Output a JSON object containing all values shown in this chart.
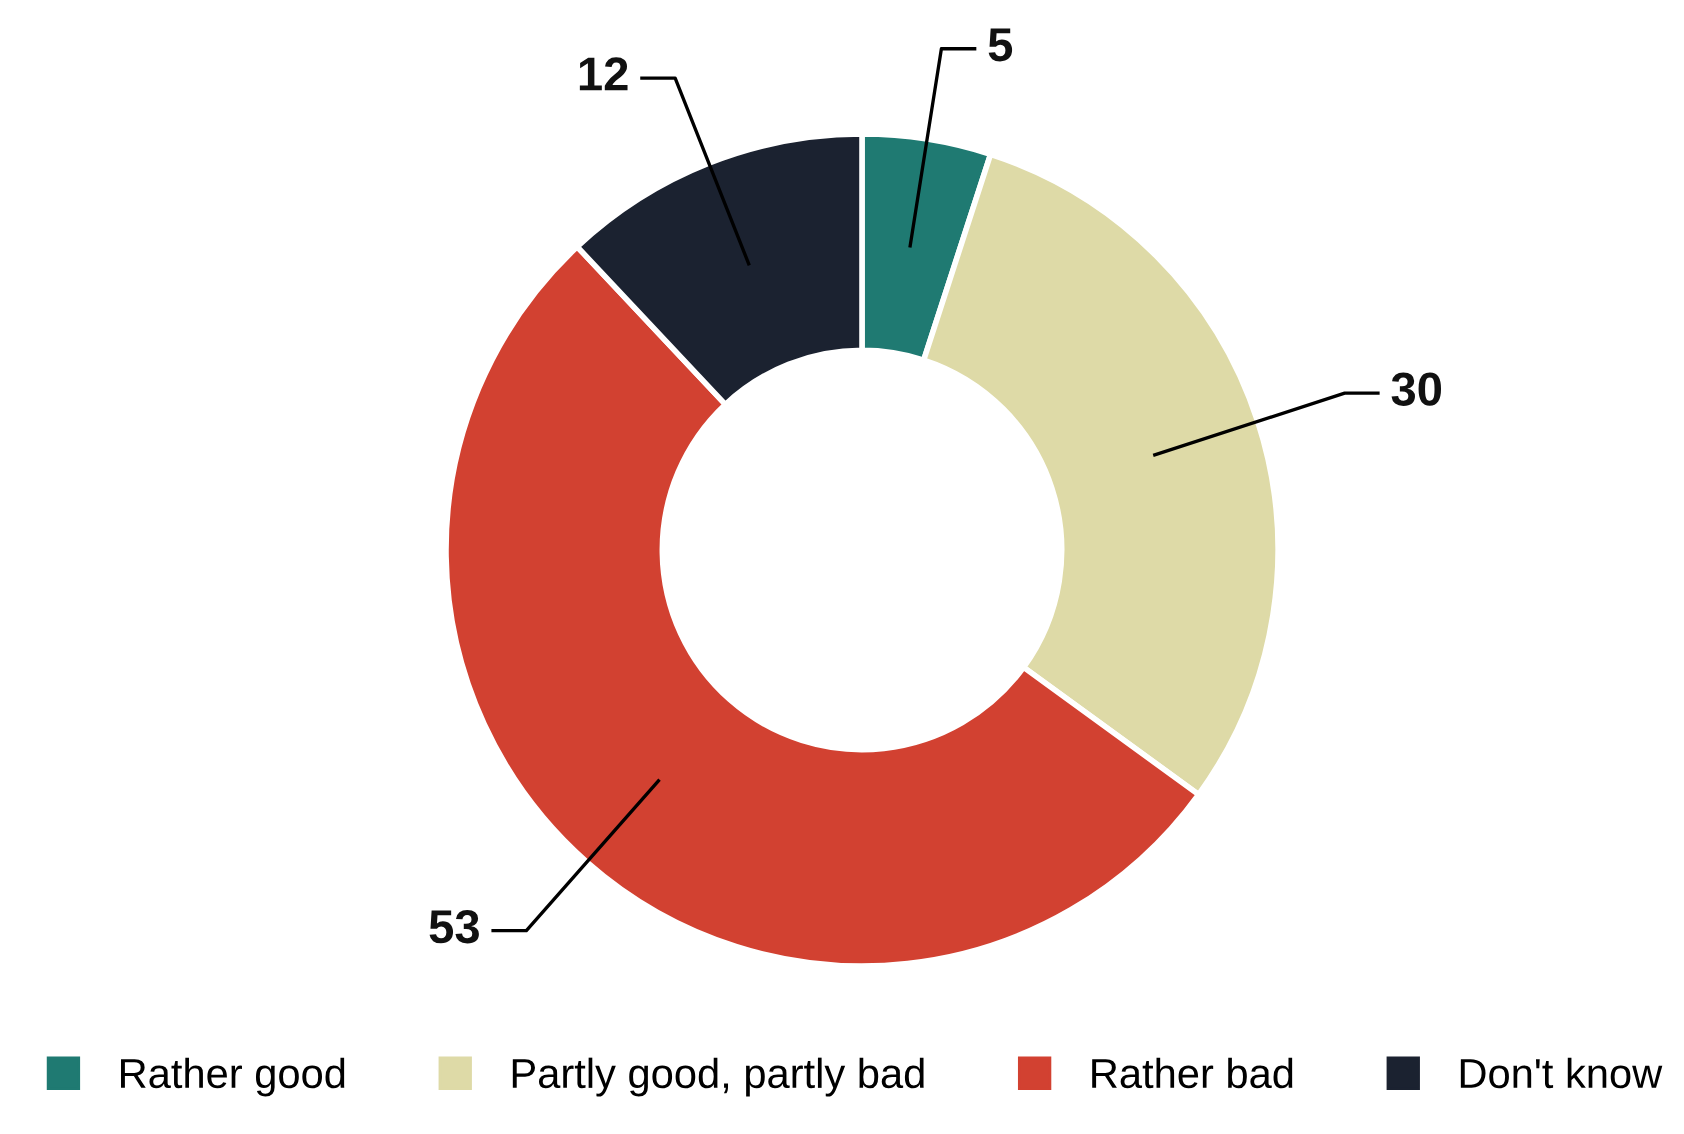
{
  "chart_data": {
    "type": "donut",
    "categories": [
      "Rather good",
      "Partly good, partly bad",
      "Rather bad",
      "Don't know"
    ],
    "values": [
      5,
      30,
      53,
      12
    ],
    "colors": [
      "#1f7a72",
      "#dedaa7",
      "#d24131",
      "#1b2230"
    ],
    "data_labels": true,
    "legend": "bottom"
  }
}
